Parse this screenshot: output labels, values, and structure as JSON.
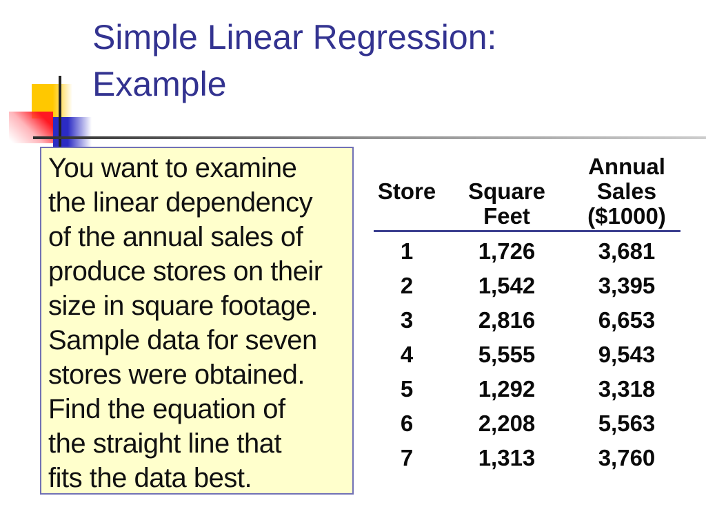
{
  "slide": {
    "title_lines": [
      "Simple Linear Regression:",
      "Example"
    ],
    "textbox": {
      "text": "You want to examine\nthe linear dependency\nof the annual sales of\nproduce stores on their\nsize in square footage.\nSample data for seven\nstores were obtained.\nFind the equation of\nthe straight line that\nfits the data best."
    },
    "table": {
      "headers": {
        "store": "Store",
        "square_feet": "Square\nFeet",
        "annual_sales": "Annual\nSales\n($1000)"
      },
      "rows": [
        [
          "1",
          "1,726",
          "3,681"
        ],
        [
          "2",
          "1,542",
          "3,395"
        ],
        [
          "3",
          "2,816",
          "6,653"
        ],
        [
          "4",
          "5,555",
          "9,543"
        ],
        [
          "5",
          "1,292",
          "3,318"
        ],
        [
          "6",
          "2,208",
          "5,563"
        ],
        [
          "7",
          "1,313",
          "3,760"
        ]
      ]
    },
    "colors": {
      "title_text": "#333390",
      "header_rule": "#3C4090",
      "textbox_background": "#FFFFCC",
      "textbox_border": "#7171B5",
      "deco_yellow": "#FFC800",
      "deco_red": "#FF1822",
      "deco_blue": "#2B2BC4"
    }
  }
}
